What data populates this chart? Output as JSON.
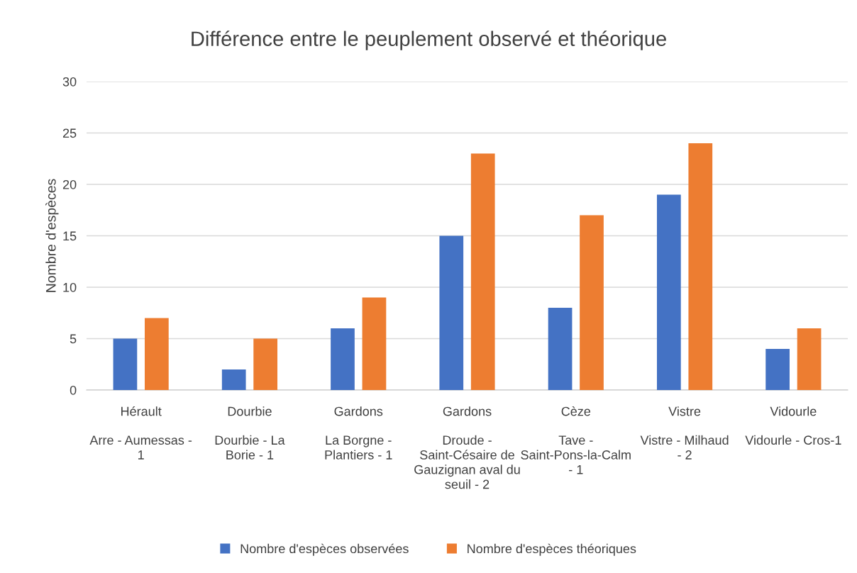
{
  "chart_data": {
    "type": "bar",
    "title": "Différence entre le peuplement observé et théorique",
    "ylabel": "Nombre d'espèces",
    "categories": [
      "Hérault\nArre - Aumessas - 1",
      "Dourbie\nDourbie - La Borie - 1",
      "Gardons\nLa Borgne - Plantiers - 1",
      "Gardons\nDroude - Saint-Césaire de Gauzignan aval du seuil - 2",
      "Cèze\nTave - Saint-Pons-la-Calm - 1",
      "Vistre\nVistre - Milhaud - 2",
      "Vidourle\nVidourle - Cros-1"
    ],
    "series": [
      {
        "name": "Nombre d'espèces observées",
        "color": "#4472c4",
        "values": [
          5,
          2,
          6,
          15,
          8,
          19,
          4
        ]
      },
      {
        "name": "Nombre d'espèces théoriques",
        "color": "#ed7d31",
        "values": [
          7,
          5,
          9,
          23,
          17,
          24,
          6
        ]
      }
    ],
    "ylim": [
      0,
      30
    ],
    "yticks": [
      0,
      5,
      10,
      15,
      20,
      25,
      30
    ],
    "grid": "y",
    "legend": "bottom"
  }
}
